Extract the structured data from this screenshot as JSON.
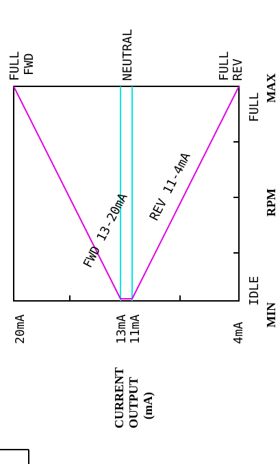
{
  "diagram": {
    "rotated_labels": {
      "full_fwd_1": "FULL",
      "full_fwd_2": "FWD",
      "neutral": "NEUTRAL",
      "full_rev_1": "FULL",
      "full_rev_2": "REV",
      "full": "FULL",
      "max": "MAX",
      "rpm": "RPM",
      "idle": "IDLE",
      "min": "MIN",
      "ma20": "20mA",
      "ma13": "13mA",
      "ma11": "11mA",
      "ma4": "4mA",
      "current": "CURRENT",
      "output": "OUTPUT",
      "unit": "(mA)",
      "fwd_line": "FWD 13-20mA",
      "rev_line": "REV 11-4mA"
    },
    "colors": {
      "frame": "#000000",
      "neutral_band": "#00e5e5",
      "response": "#e000e0"
    }
  }
}
